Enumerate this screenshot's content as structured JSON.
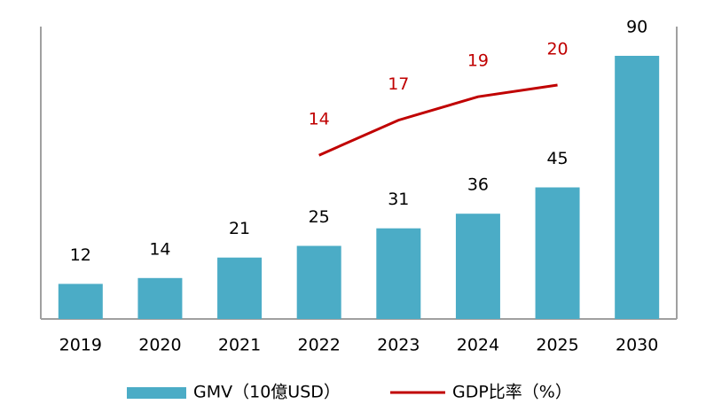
{
  "chart_data": {
    "type": "bar",
    "categories": [
      "2019",
      "2020",
      "2021",
      "2022",
      "2023",
      "2024",
      "2025",
      "2030"
    ],
    "series": [
      {
        "name": "GMV（10億USD）",
        "type": "bar",
        "color": "#4bacc6",
        "values": [
          12,
          14,
          21,
          25,
          31,
          36,
          45,
          90
        ]
      },
      {
        "name": "GDP比率（%）",
        "type": "line",
        "color": "#c00000",
        "axis": "y2",
        "values": [
          null,
          null,
          null,
          14,
          17,
          19,
          20,
          null
        ]
      }
    ],
    "ylim": [
      0,
      100
    ],
    "y2lim": [
      0,
      25
    ],
    "legend": "bottom"
  }
}
